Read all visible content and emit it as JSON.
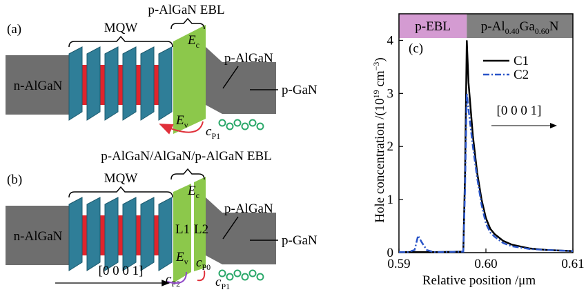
{
  "panels": [
    {
      "tag": "(a)",
      "ebl_title": "p-AlGaN EBL",
      "mqw": "MQW",
      "n_layer": "n-AlGaN",
      "p_layer": "p-AlGaN",
      "gan_layer": "p-GaN",
      "ec": {
        "main": "E",
        "sub": "c"
      },
      "ev": {
        "main": "E",
        "sub": "v"
      },
      "cp1": {
        "main": "c",
        "sub": "P1"
      }
    },
    {
      "tag": "(b)",
      "ebl_title": "p-AlGaN/AlGaN/p-AlGaN EBL",
      "mqw": "MQW",
      "n_layer": "n-AlGaN",
      "p_layer": "p-AlGaN",
      "gan_layer": "p-GaN",
      "ec": {
        "main": "E",
        "sub": "c"
      },
      "ev": {
        "main": "E",
        "sub": "v"
      },
      "cp1": {
        "main": "c",
        "sub": "P1"
      },
      "l1": "L1",
      "l2": "L2",
      "cp0": {
        "main": "c",
        "sub": "P0"
      },
      "cp2": {
        "main": "c",
        "sub": "P2"
      },
      "direction": "[0 0 0 1]"
    }
  ],
  "chart_data": {
    "type": "line",
    "tag": "(c)",
    "direction": "[0 0 0 1]",
    "xlabel": "Relative position /μm",
    "ylabel": [
      "Hole concentration /(10",
      "19",
      " cm",
      "−3",
      ")"
    ],
    "bands": [
      {
        "label": [
          "p-EBL"
        ],
        "color": "#d49bd2",
        "range": [
          0.59,
          0.5978
        ]
      },
      {
        "label": [
          "p-Al",
          "0.40",
          "Ga",
          "0.60",
          "N"
        ],
        "color": "#808080",
        "range": [
          0.5978,
          0.61
        ]
      }
    ],
    "x": [
      0.59,
      0.591,
      0.5918,
      0.5922,
      0.5926,
      0.5932,
      0.594,
      0.5974,
      0.5976,
      0.5978,
      0.598,
      0.5985,
      0.599,
      0.5995,
      0.6,
      0.6005,
      0.601,
      0.602,
      0.603,
      0.605,
      0.607,
      0.61
    ],
    "series": [
      {
        "name": "C1",
        "color": "#000000",
        "dash": "none",
        "values": [
          0.01,
          0.01,
          0.01,
          0.01,
          0.01,
          0.01,
          0.01,
          0.02,
          1.5,
          4.0,
          3.2,
          2.2,
          1.5,
          1.0,
          0.65,
          0.45,
          0.35,
          0.22,
          0.15,
          0.08,
          0.05,
          0.03
        ]
      },
      {
        "name": "C2",
        "color": "#2a55c8",
        "dash": "9,3,2,3",
        "values": [
          0.01,
          0.01,
          0.05,
          0.32,
          0.2,
          0.05,
          0.01,
          0.02,
          1.2,
          3.0,
          2.7,
          2.0,
          1.4,
          0.9,
          0.55,
          0.38,
          0.3,
          0.18,
          0.12,
          0.07,
          0.05,
          0.03
        ]
      }
    ],
    "xlim": [
      0.59,
      0.61
    ],
    "ylim": [
      0,
      4.5
    ],
    "xticks": [
      0.59,
      {
        "value": 0.6,
        "label": "0.60"
      },
      0.61
    ],
    "yticks": [
      0,
      1,
      2,
      3,
      4
    ]
  }
}
